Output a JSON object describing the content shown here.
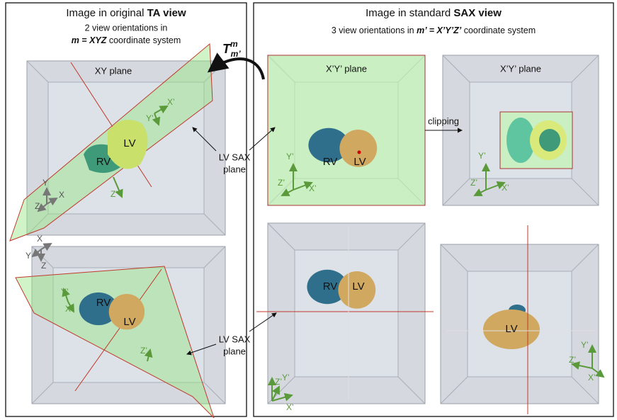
{
  "transform": {
    "symbol": "T",
    "superscript": "m",
    "subscript": "m’"
  },
  "left_panel": {
    "title": "Image in original",
    "title_bold": "TA view",
    "subtitle": "2 view orientations in",
    "coord_bold": "m = XYZ",
    "coord_text": "coordinate system",
    "top_view": {
      "plane": "XY plane",
      "lv": "LV",
      "rv": "RV",
      "axes": {
        "x": "X",
        "y": "Y",
        "z": "Z",
        "x2": "X’",
        "y2": "Y’",
        "z2": "Z’"
      }
    },
    "bottom_view": {
      "lv": "LV",
      "rv": "RV",
      "axes": {
        "x": "X",
        "y": "Y",
        "z": "Z",
        "x2": "X’",
        "y2": "Y’",
        "z2": "Z’"
      }
    }
  },
  "right_panel": {
    "title": "Image in standard",
    "title_bold": "SAX view",
    "subtitle": "3 view orientations in",
    "coord_bold": "m’ = X’Y’Z’",
    "coord_text": "coordinate system",
    "views": [
      {
        "plane": "X’Y’ plane",
        "lv": "LV",
        "rv": "RV",
        "axes": {
          "x": "X’",
          "y": "Y’",
          "z": "Z’"
        }
      },
      {
        "plane": "X’Y’ plane",
        "axes": {
          "x": "X’",
          "y": "Y’",
          "z": "Z’"
        }
      },
      {
        "lv": "LV",
        "rv": "RV",
        "axes": {
          "x": "X’",
          "y": "Y’",
          "z": "Z’"
        }
      },
      {
        "lv": "LV",
        "axes": {
          "x": "X’",
          "y": "Y’",
          "z": "Z’"
        }
      }
    ]
  },
  "callouts": {
    "clipping": "clipping",
    "sax_plane": [
      [
        "LV SAX",
        "plane"
      ],
      [
        "LV SAX",
        "plane"
      ]
    ]
  }
}
